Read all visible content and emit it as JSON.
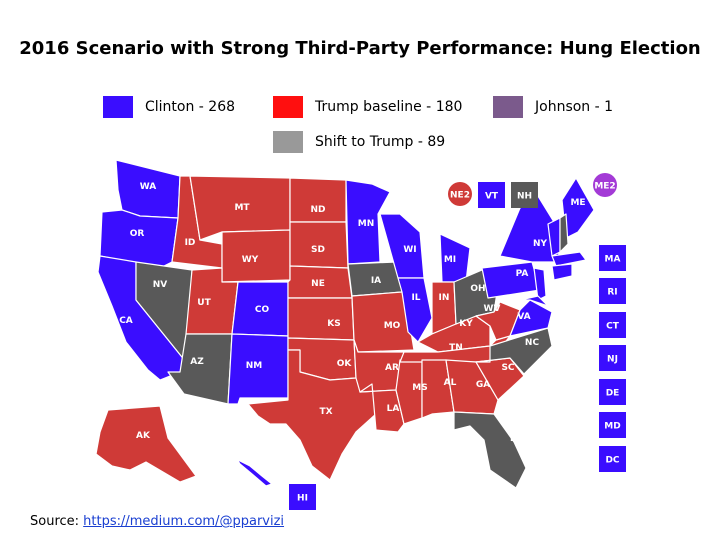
{
  "title": "2016 Scenario with Strong Third-Party Performance: Hung Election",
  "colors": {
    "clinton": "#3a0dff",
    "trump": "#cf3a37",
    "trump_legend": "#ff0f0f",
    "johnson": "#7b5a8c",
    "johnson_circle": "#a33ad6",
    "shift": "#595959",
    "shift_legend": "#999999",
    "border": "#ffffff"
  },
  "legend": [
    {
      "key": "clinton",
      "label": "Clinton - 268"
    },
    {
      "key": "trump",
      "label": "Trump baseline - 180"
    },
    {
      "key": "johnson",
      "label": "Johnson - 1"
    },
    {
      "key": "shift",
      "label": "Shift to Trump - 89"
    }
  ],
  "states": {
    "WA": "clinton",
    "OR": "clinton",
    "CA": "clinton",
    "NV": "shift",
    "ID": "trump",
    "MT": "trump",
    "WY": "trump",
    "UT": "trump",
    "AZ": "shift",
    "CO": "clinton",
    "NM": "clinton",
    "ND": "trump",
    "SD": "trump",
    "NE": "trump",
    "KS": "trump",
    "OK": "trump",
    "TX": "trump",
    "MN": "clinton",
    "IA": "shift",
    "MO": "trump",
    "AR": "trump",
    "LA": "trump",
    "WI": "clinton",
    "IL": "clinton",
    "MS": "trump",
    "MI": "clinton",
    "IN": "trump",
    "KY": "trump",
    "TN": "trump",
    "AL": "trump",
    "GA": "trump",
    "FL": "shift",
    "SC": "trump",
    "NC": "shift",
    "OH": "shift",
    "WV": "trump",
    "VA": "clinton",
    "PA": "clinton",
    "NY": "clinton",
    "ME": "clinton",
    "AK": "trump",
    "HI": "clinton"
  },
  "tiles": [
    {
      "label": "VT",
      "party": "clinton"
    },
    {
      "label": "NH",
      "party": "shift"
    },
    {
      "label": "MA",
      "party": "clinton"
    },
    {
      "label": "RI",
      "party": "clinton"
    },
    {
      "label": "CT",
      "party": "clinton"
    },
    {
      "label": "NJ",
      "party": "clinton"
    },
    {
      "label": "DE",
      "party": "clinton"
    },
    {
      "label": "MD",
      "party": "clinton"
    },
    {
      "label": "DC",
      "party": "clinton"
    },
    {
      "label": "HI",
      "party": "clinton"
    }
  ],
  "districts": [
    {
      "label": "NE2",
      "party": "trump"
    },
    {
      "label": "ME2",
      "party": "johnson"
    }
  ],
  "source": {
    "prefix": "Source: ",
    "link": "https://medium.com/@pparvizi"
  }
}
